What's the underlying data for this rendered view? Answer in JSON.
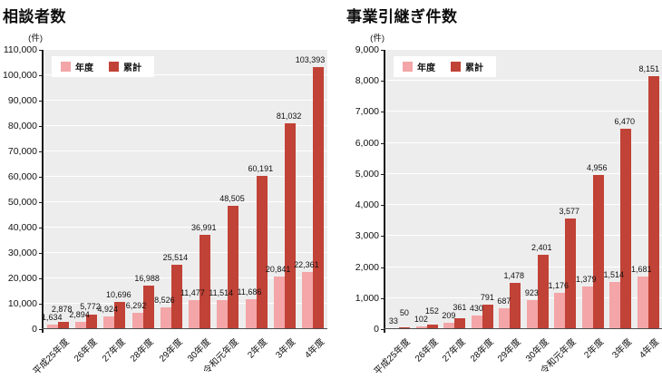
{
  "legend": {
    "annual_label": "年度",
    "cumulative_label": "累計"
  },
  "colors": {
    "annual_bar": "#f3a5a7",
    "cumulative_bar": "#c14236",
    "plot_background": "#ededed",
    "gridline": "#ffffff",
    "axis": "#1a1a1a"
  },
  "chart_data": [
    {
      "type": "bar",
      "title": "相談者数",
      "unit_label": "(件)",
      "ylim": [
        0,
        110000
      ],
      "ytick_step": 10000,
      "ytick_labels": [
        "0",
        "10,000",
        "20,000",
        "30,000",
        "40,000",
        "50,000",
        "60,000",
        "70,000",
        "80,000",
        "90,000",
        "100,000",
        "110,000"
      ],
      "grid": true,
      "legend_position": "top-left",
      "categories": [
        "平成25年度",
        "26年度",
        "27年度",
        "28年度",
        "29年度",
        "30年度",
        "令和元年度",
        "2年度",
        "3年度",
        "4年度"
      ],
      "series": [
        {
          "name": "年度",
          "values": [
            1634,
            2894,
            4924,
            6292,
            8526,
            11477,
            11514,
            11686,
            20841,
            22361
          ],
          "value_labels": [
            "1,634",
            "2,894",
            "4,924",
            "6,292",
            "8,526",
            "11,477",
            "11,514",
            "11,686",
            "20,841",
            "22,361"
          ]
        },
        {
          "name": "累計",
          "values": [
            2878,
            5772,
            10696,
            16988,
            25514,
            36991,
            48505,
            60191,
            81032,
            103393
          ],
          "value_labels": [
            "2,878",
            "5,772",
            "10,696",
            "16,988",
            "25,514",
            "36,991",
            "48,505",
            "60,191",
            "81,032",
            "103,393"
          ]
        }
      ]
    },
    {
      "type": "bar",
      "title": "事業引継ぎ件数",
      "unit_label": "(件)",
      "ylim": [
        0,
        9000
      ],
      "ytick_step": 1000,
      "ytick_labels": [
        "0",
        "1,000",
        "2,000",
        "3,000",
        "4,000",
        "5,000",
        "6,000",
        "7,000",
        "8,000",
        "9,000"
      ],
      "grid": true,
      "legend_position": "top-left",
      "categories": [
        "平成25年度",
        "26年度",
        "27年度",
        "28年度",
        "29年度",
        "30年度",
        "令和元年度",
        "2年度",
        "3年度",
        "4年度"
      ],
      "series": [
        {
          "name": "年度",
          "values": [
            33,
            102,
            209,
            430,
            687,
            923,
            1176,
            1379,
            1514,
            1681
          ],
          "value_labels": [
            "33",
            "102",
            "209",
            "430",
            "687",
            "923",
            "1,176",
            "1,379",
            "1,514",
            "1,681"
          ]
        },
        {
          "name": "累計",
          "values": [
            50,
            152,
            361,
            791,
            1478,
            2401,
            3577,
            4956,
            6470,
            8151
          ],
          "value_labels": [
            "50",
            "152",
            "361",
            "791",
            "1,478",
            "2,401",
            "3,577",
            "4,956",
            "6,470",
            "8,151"
          ]
        }
      ]
    }
  ]
}
